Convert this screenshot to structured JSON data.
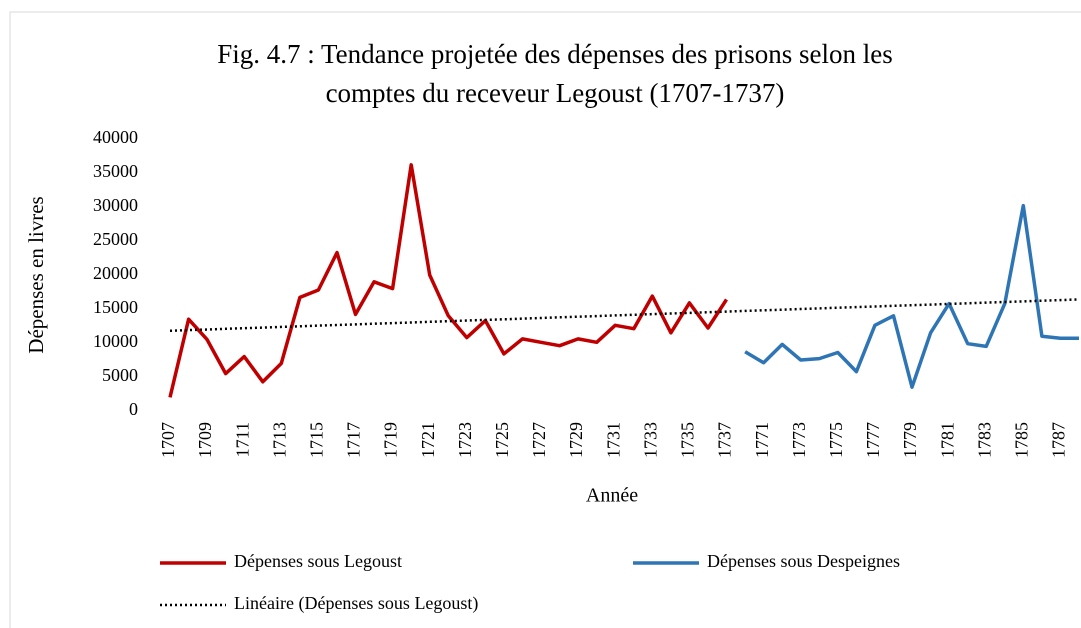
{
  "chart_data": {
    "type": "line",
    "title": [
      "Fig. 4.7 : Tendance projetée des dépenses des prisons selon les",
      "comptes du receveur Legoust (1707-1737)"
    ],
    "x_label": "Année",
    "y_label": "Dépenses en livres",
    "categories": [
      "1707",
      null,
      "1709",
      null,
      "1711",
      null,
      "1713",
      null,
      "1715",
      null,
      "1717",
      null,
      "1719",
      null,
      "1721",
      null,
      "1723",
      null,
      "1725",
      null,
      "1727",
      null,
      "1729",
      null,
      "1731",
      null,
      "1733",
      null,
      "1735",
      null,
      "1737",
      null,
      "1771",
      null,
      "1773",
      null,
      "1775",
      null,
      "1777",
      null,
      "1779",
      null,
      "1781",
      null,
      "1783",
      null,
      "1785",
      null,
      "1787",
      null
    ],
    "series": [
      {
        "name": "Dépenses sous Legoust",
        "color": "#c00000",
        "style": "solid",
        "values": [
          2000,
          13500,
          10500,
          5500,
          8000,
          4300,
          7000,
          16700,
          17800,
          23300,
          14200,
          19000,
          18000,
          36200,
          20000,
          14000,
          10800,
          13300,
          8400,
          10600,
          10100,
          9600,
          10600,
          10100,
          12600,
          12100,
          16900,
          11500,
          15900,
          12200,
          16400,
          null,
          null,
          null,
          null,
          null,
          null,
          null,
          null,
          null,
          null,
          null,
          null,
          null,
          null,
          null,
          null,
          null,
          null,
          null
        ]
      },
      {
        "name": "Dépenses sous Despeignes",
        "color": "#2e75b6",
        "style": "solid",
        "values": [
          null,
          null,
          null,
          null,
          null,
          null,
          null,
          null,
          null,
          null,
          null,
          null,
          null,
          null,
          null,
          null,
          null,
          null,
          null,
          null,
          null,
          null,
          null,
          null,
          null,
          null,
          null,
          null,
          null,
          null,
          null,
          8700,
          7100,
          9800,
          7500,
          7700,
          8600,
          5800,
          12600,
          14000,
          3500,
          11500,
          15800,
          9900,
          9500,
          15800,
          30200,
          11000,
          10700,
          10700
        ]
      },
      {
        "name": "Linéaire (Dépenses sous Legoust)",
        "color": "#000000",
        "style": "dotted",
        "values": [
          11800,
          11894,
          11988,
          12082,
          12176,
          12270,
          12364,
          12458,
          12552,
          12646,
          12740,
          12834,
          12928,
          13022,
          13116,
          13210,
          13304,
          13398,
          13492,
          13586,
          13680,
          13774,
          13868,
          13962,
          14056,
          14150,
          14244,
          14338,
          14432,
          14526,
          14620,
          14714,
          14808,
          14902,
          14996,
          15090,
          15184,
          15278,
          15372,
          15466,
          15560,
          15654,
          15748,
          15842,
          15936,
          16030,
          16124,
          16218,
          16312,
          16406
        ]
      }
    ],
    "ylim": [
      0,
      40000
    ],
    "yticks": [
      0,
      5000,
      10000,
      15000,
      20000,
      25000,
      30000,
      35000,
      40000
    ],
    "grid": false,
    "legend": "bottom"
  }
}
